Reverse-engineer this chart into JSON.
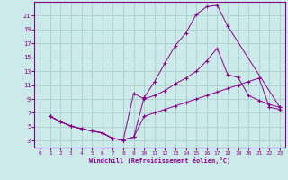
{
  "xlabel": "Windchill (Refroidissement éolien,°C)",
  "bg_color": "#cdeaea",
  "grid_color": "#aacfcf",
  "line_color": "#880088",
  "xlim": [
    -0.5,
    23.5
  ],
  "ylim": [
    2,
    23
  ],
  "xticks": [
    0,
    1,
    2,
    3,
    4,
    5,
    6,
    7,
    8,
    9,
    10,
    11,
    12,
    13,
    14,
    15,
    16,
    17,
    18,
    19,
    20,
    21,
    22,
    23
  ],
  "yticks": [
    3,
    5,
    7,
    9,
    11,
    13,
    15,
    17,
    19,
    21
  ],
  "curve1_x": [
    1,
    2,
    3,
    4,
    5,
    6,
    7,
    8,
    9,
    10,
    11,
    12,
    13,
    14,
    15,
    16,
    17,
    18,
    23
  ],
  "curve1_y": [
    6.5,
    5.7,
    5.1,
    4.7,
    4.4,
    4.1,
    3.3,
    3.1,
    3.5,
    9.2,
    11.5,
    14.2,
    16.7,
    18.5,
    21.2,
    22.3,
    22.5,
    19.5,
    7.8
  ],
  "curve2_x": [
    1,
    2,
    3,
    4,
    5,
    6,
    7,
    8,
    9,
    10,
    11,
    12,
    13,
    14,
    15,
    16,
    17,
    18,
    19,
    20,
    21,
    22,
    23
  ],
  "curve2_y": [
    6.5,
    5.7,
    5.1,
    4.7,
    4.4,
    4.1,
    3.3,
    3.1,
    9.8,
    9.0,
    9.5,
    10.2,
    11.2,
    12.0,
    13.0,
    14.5,
    16.3,
    12.5,
    12.1,
    9.5,
    8.8,
    8.2,
    7.8
  ],
  "curve3_x": [
    1,
    2,
    3,
    4,
    5,
    6,
    7,
    8,
    9,
    10,
    11,
    12,
    13,
    14,
    15,
    16,
    17,
    18,
    19,
    20,
    21,
    22,
    23
  ],
  "curve3_y": [
    6.5,
    5.7,
    5.1,
    4.7,
    4.4,
    4.1,
    3.3,
    3.1,
    3.5,
    6.5,
    7.0,
    7.5,
    8.0,
    8.5,
    9.0,
    9.5,
    10.0,
    10.5,
    11.0,
    11.5,
    12.0,
    7.8,
    7.5
  ]
}
